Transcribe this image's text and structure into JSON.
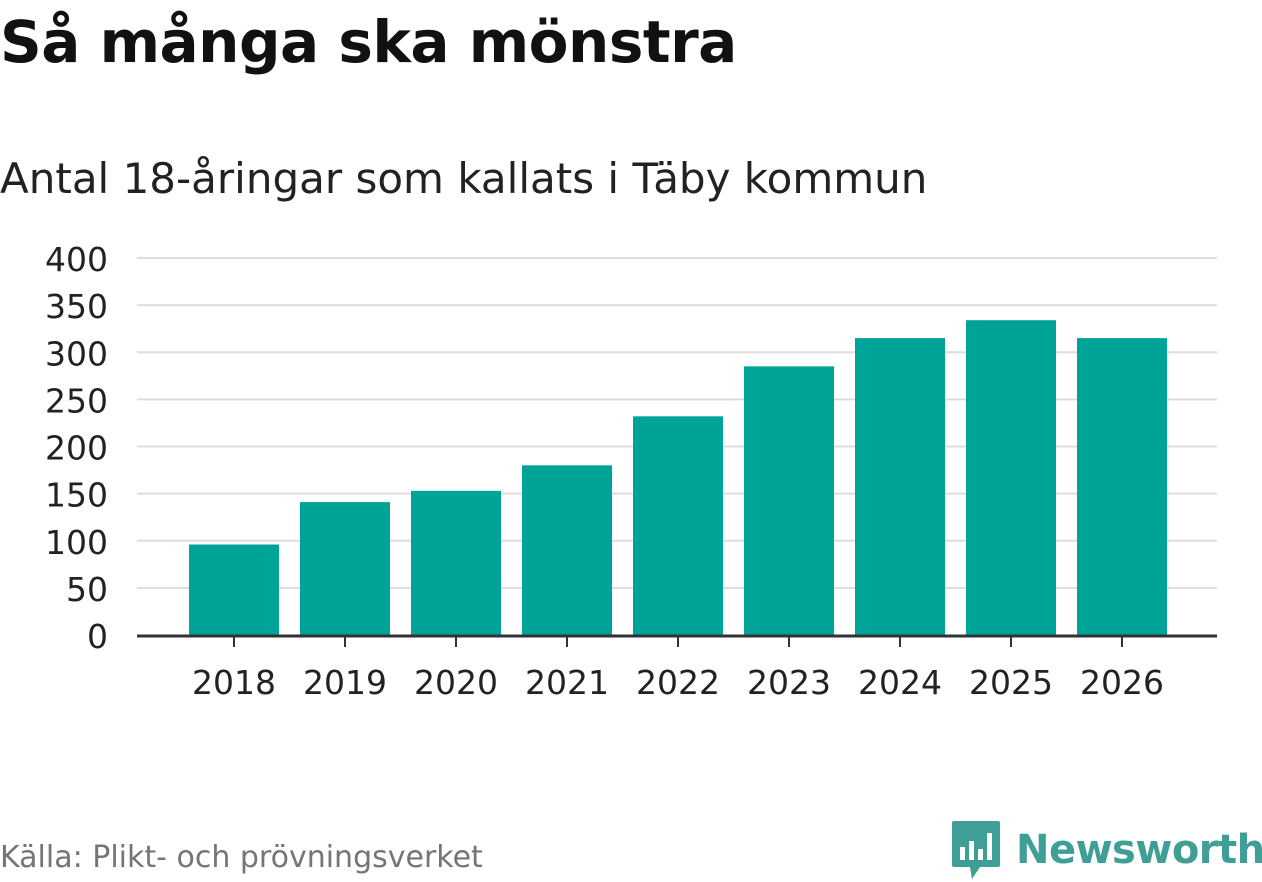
{
  "title": "Så många ska mönstra",
  "subtitle": "Antal 18-åringar som kallats i Täby kommun",
  "source": "Källa: Plikt- och prövningsverket",
  "brand": {
    "name": "Newsworthy",
    "icon": "newsworthy-logo-icon",
    "color": "#3f9e96"
  },
  "colors": {
    "bar": "#00a398",
    "grid": "#dddddd",
    "axis": "#333333",
    "tick_text": "#222222"
  },
  "chart_data": {
    "type": "bar",
    "title": "Så många ska mönstra",
    "subtitle": "Antal 18-åringar som kallats i Täby kommun",
    "categories": [
      "2018",
      "2019",
      "2020",
      "2021",
      "2022",
      "2023",
      "2024",
      "2025",
      "2026"
    ],
    "values": [
      96,
      141,
      153,
      180,
      232,
      285,
      315,
      334,
      315
    ],
    "yticks": [
      0,
      50,
      100,
      150,
      200,
      250,
      300,
      350,
      400
    ],
    "ylim": [
      0,
      400
    ],
    "xlabel": "",
    "ylabel": "",
    "grid": true,
    "legend": "none"
  }
}
